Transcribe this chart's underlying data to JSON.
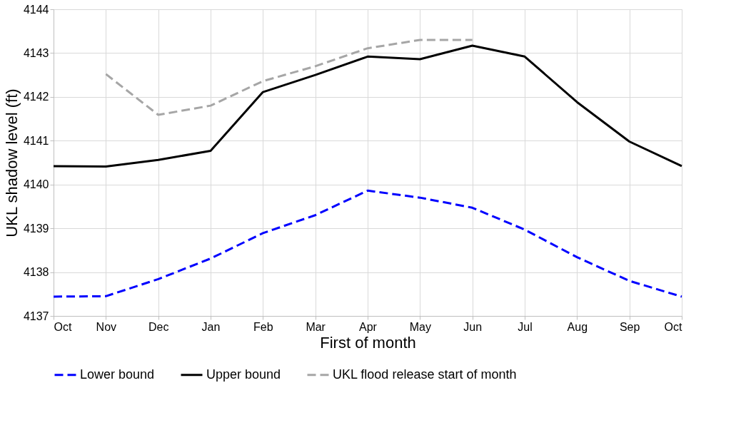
{
  "chart_data": {
    "type": "line",
    "xlabel": "First of month",
    "ylabel": "UKL shadow level (ft)",
    "categories": [
      "Oct",
      "Nov",
      "Dec",
      "Jan",
      "Feb",
      "Mar",
      "Apr",
      "May",
      "Jun",
      "Jul",
      "Aug",
      "Sep",
      "Oct"
    ],
    "ylim": [
      4137,
      4144
    ],
    "yticks": [
      4137,
      4138,
      4139,
      4140,
      4141,
      4142,
      4143,
      4144
    ],
    "grid": true,
    "legend": "bottom",
    "marker": "none",
    "series": [
      {
        "name": "Lower bound",
        "color": "#0000ff",
        "line_style": "dashed",
        "values": [
          4137.44,
          4137.45,
          4137.84,
          4138.31,
          4138.89,
          4139.3,
          4139.86,
          4139.7,
          4139.47,
          4138.97,
          4138.34,
          4137.8,
          4137.44
        ]
      },
      {
        "name": "Upper bound",
        "color": "#000000",
        "line_style": "solid",
        "values": [
          4140.42,
          4140.41,
          4140.56,
          4140.77,
          4142.11,
          4142.5,
          4142.92,
          4142.86,
          4143.17,
          4142.92,
          4141.88,
          4140.98,
          4140.42
        ]
      },
      {
        "name": "UKL flood release start of month",
        "color": "#a6a6a6",
        "line_style": "dashed",
        "values": [
          null,
          4142.52,
          4141.59,
          4141.8,
          4142.36,
          4142.7,
          4143.11,
          4143.3,
          4143.3,
          null,
          null,
          null,
          null
        ]
      }
    ]
  }
}
